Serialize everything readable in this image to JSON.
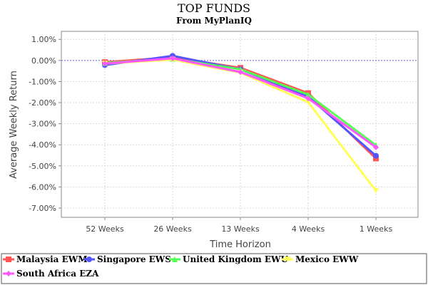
{
  "chart_data": {
    "type": "line",
    "title": "TOP FUNDS",
    "subtitle": "From MyPlanIQ",
    "xlabel": "Time Horizon",
    "ylabel": "Average Weekly Return",
    "categories": [
      "52 Weeks",
      "26 Weeks",
      "13 Weeks",
      "4 Weeks",
      "1 Weeks"
    ],
    "ylim": [
      -0.075,
      0.015
    ],
    "yticks": [
      "1.00%",
      "0.00%",
      "-1.00%",
      "-2.00%",
      "-3.00%",
      "-4.00%",
      "-5.00%",
      "-6.00%",
      "-7.00%"
    ],
    "grid": true,
    "reference_line": 0,
    "legend_position": "bottom",
    "series": [
      {
        "name": "Malaysia  EWM",
        "color": "#ff5555",
        "marker": "square",
        "values": [
          -0.0008,
          0.0015,
          -0.0035,
          -0.0155,
          -0.0465
        ]
      },
      {
        "name": "Singapore  EWS",
        "color": "#5555ff",
        "marker": "circle",
        "values": [
          -0.0022,
          0.0022,
          -0.0042,
          -0.0172,
          -0.0452
        ]
      },
      {
        "name": "United Kingdom  EWU",
        "color": "#55ff55",
        "marker": "triangle-up",
        "values": [
          -0.0012,
          0.0008,
          -0.0042,
          -0.0162,
          -0.0402
        ]
      },
      {
        "name": "Mexico  EWW",
        "color": "#ffff55",
        "marker": "triangle-down",
        "values": [
          -0.0015,
          0.0004,
          -0.0058,
          -0.0198,
          -0.0618
        ]
      },
      {
        "name": "South Africa  EZA",
        "color": "#ff55ff",
        "marker": "diamond",
        "values": [
          -0.0015,
          0.001,
          -0.0055,
          -0.018,
          -0.0412
        ]
      }
    ]
  }
}
